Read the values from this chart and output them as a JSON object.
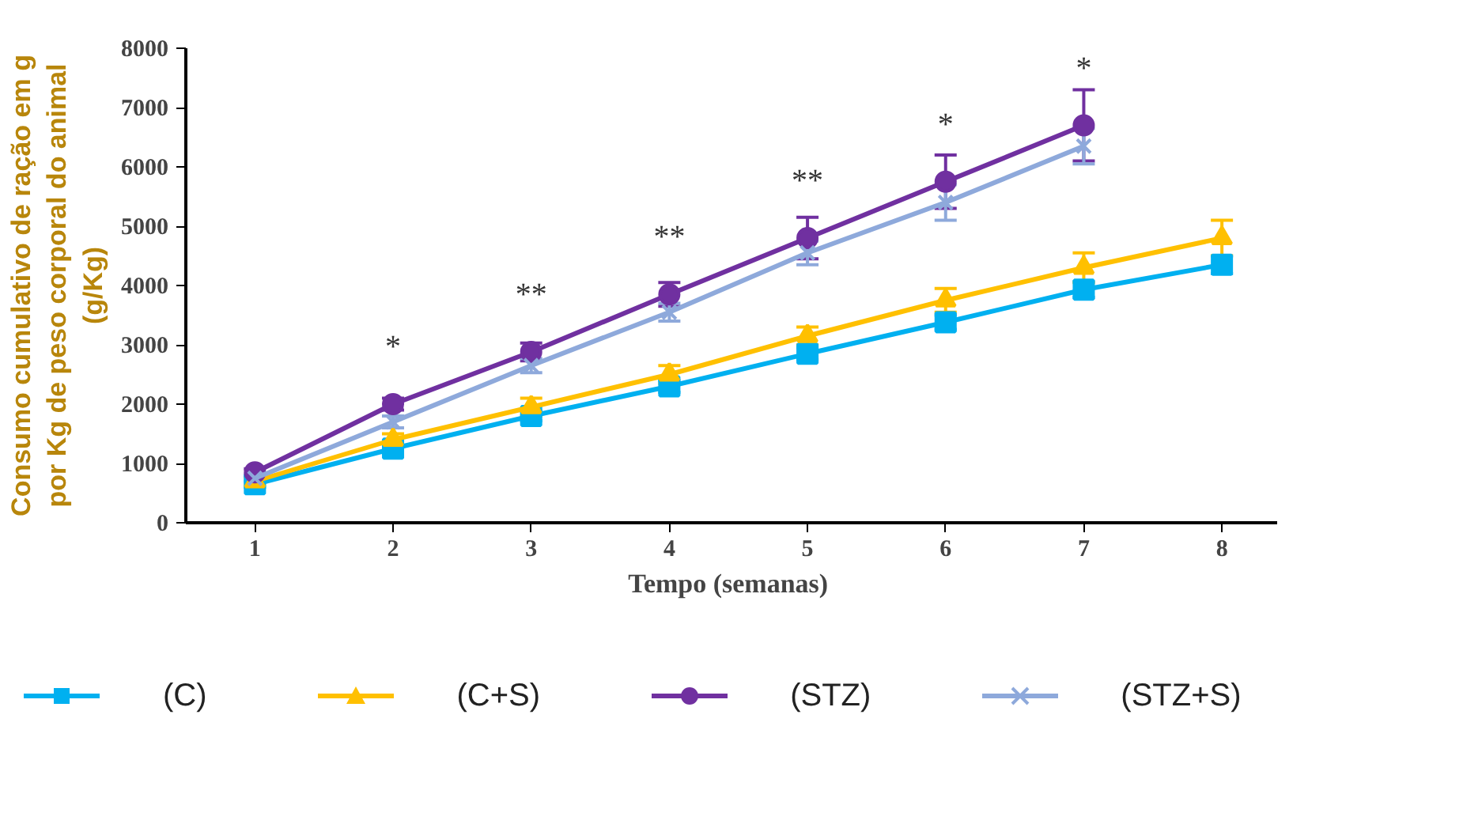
{
  "chart_data": {
    "type": "line",
    "xlabel": "Tempo  (semanas)",
    "ylabel": "Consumo cumulativo de ração em g\npor Kg de peso corporal do animal\n(g/Kg)",
    "xlim": [
      0.5,
      8.4
    ],
    "xticks": [
      1,
      2,
      3,
      4,
      5,
      6,
      7,
      8
    ],
    "ylim": [
      0,
      8000
    ],
    "yticks": [
      0,
      1000,
      2000,
      3000,
      4000,
      5000,
      6000,
      7000,
      8000
    ],
    "grid": false,
    "legend": "bottom",
    "line_style": "solid",
    "series": [
      {
        "name": "(C)",
        "color": "#00b0f0",
        "marker": "square",
        "x": [
          1,
          2,
          3,
          4,
          5,
          6,
          7,
          8
        ],
        "values": [
          650,
          1250,
          1800,
          2300,
          2850,
          3380,
          3930,
          4350
        ],
        "errors": [
          50,
          60,
          80,
          100,
          100,
          120,
          130,
          150
        ]
      },
      {
        "name": "(C+S)",
        "color": "#ffc000",
        "marker": "triangle",
        "x": [
          1,
          2,
          3,
          4,
          5,
          6,
          7,
          8
        ],
        "values": [
          700,
          1400,
          1950,
          2500,
          3150,
          3750,
          4300,
          4800
        ],
        "errors": [
          60,
          100,
          150,
          150,
          150,
          200,
          250,
          300
        ]
      },
      {
        "name": "(STZ)",
        "color": "#7030a0",
        "marker": "circle",
        "x": [
          1,
          2,
          3,
          4,
          5,
          6,
          7
        ],
        "values": [
          850,
          2000,
          2880,
          3850,
          4800,
          5750,
          6700
        ],
        "errors": [
          60,
          100,
          150,
          200,
          350,
          450,
          600
        ]
      },
      {
        "name": "(STZ+S)",
        "color": "#8ea9db",
        "marker": "cross",
        "x": [
          1,
          2,
          3,
          4,
          5,
          6,
          7
        ],
        "values": [
          750,
          1700,
          2650,
          3550,
          4550,
          5400,
          6350
        ],
        "errors": [
          60,
          100,
          120,
          150,
          200,
          300,
          300
        ]
      }
    ],
    "annotations": [
      "*",
      "**",
      "**",
      "**",
      "*",
      "*"
    ]
  }
}
